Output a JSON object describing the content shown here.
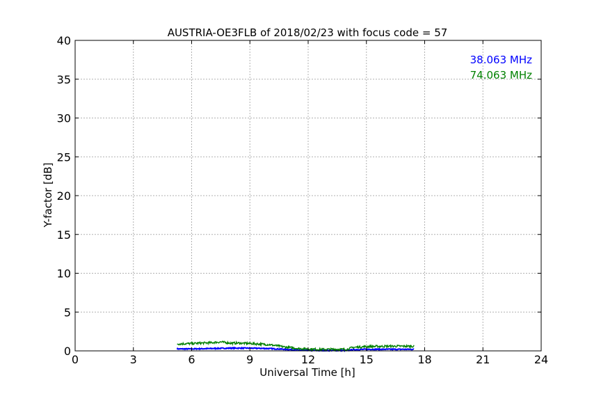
{
  "chart_data": {
    "type": "line",
    "title": "AUSTRIA-OE3FLB of 2018/02/23 with focus code = 57",
    "xlabel": "Universal Time [h]",
    "ylabel": "Y-factor [dB]",
    "xlim": [
      0,
      24
    ],
    "ylim": [
      0,
      40
    ],
    "xticks": [
      0,
      3,
      6,
      9,
      12,
      15,
      18,
      21,
      24
    ],
    "yticks": [
      0,
      5,
      10,
      15,
      20,
      25,
      30,
      35,
      40
    ],
    "grid": true,
    "legend_position": "top-right",
    "series": [
      {
        "name": "38.063 MHz",
        "color": "#0000ff",
        "x": [
          5.25,
          6.0,
          7.0,
          8.0,
          9.0,
          10.0,
          10.8,
          11.5,
          12.5,
          13.5,
          14.0,
          14.3,
          15.0,
          16.0,
          17.0,
          17.45
        ],
        "y": [
          0.25,
          0.25,
          0.3,
          0.35,
          0.35,
          0.3,
          0.2,
          0.1,
          0.05,
          0.05,
          0.05,
          0.15,
          0.2,
          0.2,
          0.2,
          0.2
        ]
      },
      {
        "name": "74.063 MHz",
        "color": "#008000",
        "x": [
          5.25,
          6.0,
          7.0,
          7.5,
          8.0,
          8.5,
          9.0,
          10.0,
          10.8,
          11.5,
          12.5,
          13.5,
          14.0,
          14.3,
          15.0,
          16.0,
          17.0,
          17.45
        ],
        "y": [
          0.9,
          0.95,
          1.05,
          1.15,
          1.0,
          1.0,
          0.95,
          0.8,
          0.5,
          0.3,
          0.2,
          0.2,
          0.2,
          0.45,
          0.55,
          0.6,
          0.6,
          0.6
        ]
      }
    ]
  }
}
